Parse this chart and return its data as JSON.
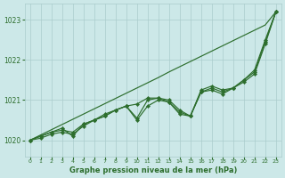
{
  "background_color": "#cce8e8",
  "plot_bg_color": "#cce8e8",
  "grid_color": "#aacccc",
  "line_color": "#2d6e2d",
  "marker_color": "#2d6e2d",
  "title": "Graphe pression niveau de la mer (hPa)",
  "xlim": [
    -0.5,
    23.5
  ],
  "ylim": [
    1019.6,
    1023.4
  ],
  "yticks": [
    1020,
    1021,
    1022,
    1023
  ],
  "xticks": [
    0,
    1,
    2,
    3,
    4,
    5,
    6,
    7,
    8,
    9,
    10,
    11,
    12,
    13,
    14,
    15,
    16,
    17,
    18,
    19,
    20,
    21,
    22,
    23
  ],
  "series_straight": [
    1020.0,
    1020.13,
    1020.26,
    1020.39,
    1020.52,
    1020.65,
    1020.78,
    1020.91,
    1021.04,
    1021.17,
    1021.3,
    1021.43,
    1021.56,
    1021.7,
    1021.83,
    1021.96,
    1022.09,
    1022.22,
    1022.35,
    1022.48,
    1022.61,
    1022.74,
    1022.87,
    1023.2
  ],
  "series_zigzag1": [
    1020.0,
    1020.1,
    1020.2,
    1020.25,
    1020.2,
    1020.4,
    1020.5,
    1020.65,
    1020.75,
    1020.85,
    1020.9,
    1021.05,
    1021.05,
    1020.95,
    1020.65,
    1020.6,
    1021.25,
    1021.35,
    1021.25,
    1021.3,
    1021.5,
    1021.75,
    1022.5,
    1023.2
  ],
  "series_zigzag2": [
    1020.0,
    1020.1,
    1020.2,
    1020.3,
    1020.1,
    1020.4,
    1020.5,
    1020.6,
    1020.75,
    1020.85,
    1020.55,
    1021.0,
    1021.05,
    1021.0,
    1020.75,
    1020.6,
    1021.2,
    1021.3,
    1021.2,
    1021.3,
    1021.5,
    1021.7,
    1022.45,
    1023.2
  ],
  "series_zigzag3": [
    1020.0,
    1020.05,
    1020.15,
    1020.2,
    1020.15,
    1020.35,
    1020.5,
    1020.6,
    1020.75,
    1020.85,
    1020.5,
    1020.85,
    1021.0,
    1020.95,
    1020.7,
    1020.6,
    1021.2,
    1021.25,
    1021.15,
    1021.3,
    1021.45,
    1021.65,
    1022.4,
    1023.2
  ]
}
